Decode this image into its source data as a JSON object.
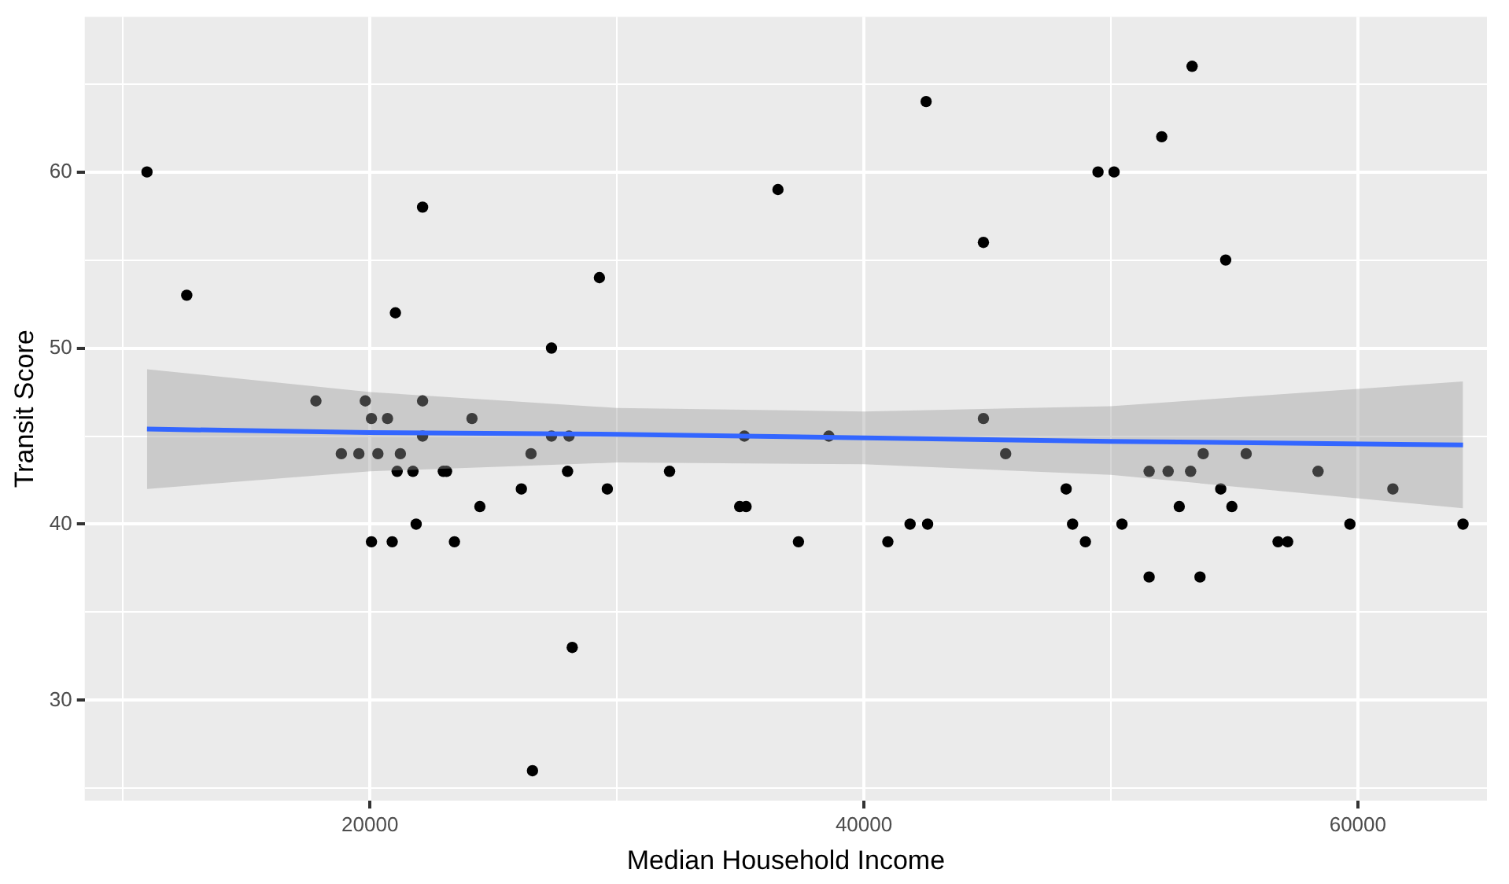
{
  "chart_data": {
    "type": "scatter",
    "xlabel": "Median Household Income",
    "ylabel": "Transit Score",
    "xlim": [
      8450,
      65230
    ],
    "ylim": [
      24.3,
      68.8
    ],
    "xticks": [
      {
        "value": 10000,
        "label": null
      },
      20000,
      {
        "value": 30000,
        "label": null
      },
      40000,
      {
        "value": 50000,
        "label": null
      },
      60000
    ],
    "yticks": [
      {
        "value": 25,
        "label": null
      },
      30,
      {
        "value": 35,
        "label": null
      },
      40,
      {
        "value": 45,
        "label": null
      },
      50,
      {
        "value": 55,
        "label": null
      },
      60,
      {
        "value": 65,
        "label": null
      }
    ],
    "grid": true,
    "series": [
      {
        "color": "#000000",
        "marker": "circle",
        "x": [
          10970,
          12580,
          17810,
          18840,
          19550,
          19810,
          20060,
          20060,
          20320,
          20710,
          20900,
          21030,
          21100,
          21230,
          21740,
          21870,
          22130,
          22130,
          22130,
          22970,
          23100,
          23420,
          24130,
          24450,
          26130,
          26520,
          26580,
          27350,
          27350,
          28000,
          28060,
          28190,
          29290,
          29610,
          32130,
          34970,
          35160,
          35230,
          36520,
          37350,
          38580,
          40970,
          41870,
          42520,
          42580,
          44840,
          44840,
          45740,
          48190,
          48450,
          48970,
          49480,
          50130,
          50450,
          51550,
          51550,
          52060,
          52320,
          52770,
          53230,
          53290,
          53610,
          53740,
          54450,
          54650,
          54900,
          55480,
          56770,
          57160,
          58390,
          59680,
          61420,
          64260
        ],
        "values": [
          60,
          53,
          47,
          44,
          44,
          47,
          46,
          39,
          44,
          46,
          39,
          52,
          43,
          44,
          43,
          40,
          45,
          47,
          58,
          43,
          43,
          39,
          46,
          41,
          42,
          44,
          26,
          45,
          50,
          43,
          45,
          33,
          54,
          42,
          43,
          41,
          45,
          41,
          59,
          39,
          45,
          39,
          40,
          64,
          40,
          56,
          46,
          44,
          42,
          40,
          39,
          60,
          60,
          40,
          43,
          37,
          62,
          43,
          41,
          43,
          66,
          37,
          44,
          42,
          55,
          41,
          44,
          39,
          39,
          43,
          40,
          42,
          40
        ]
      },
      {
        "type": "line",
        "color": "#3366ff",
        "marker": "none",
        "x": [
          10970,
          20000,
          30000,
          40000,
          50000,
          64260
        ],
        "values": [
          45.4,
          45.2,
          45.1,
          44.9,
          44.7,
          44.5
        ],
        "lower": [
          42.0,
          43.0,
          43.5,
          43.4,
          42.8,
          40.9
        ],
        "upper": [
          48.8,
          47.5,
          46.6,
          46.4,
          46.7,
          48.1
        ]
      }
    ]
  }
}
